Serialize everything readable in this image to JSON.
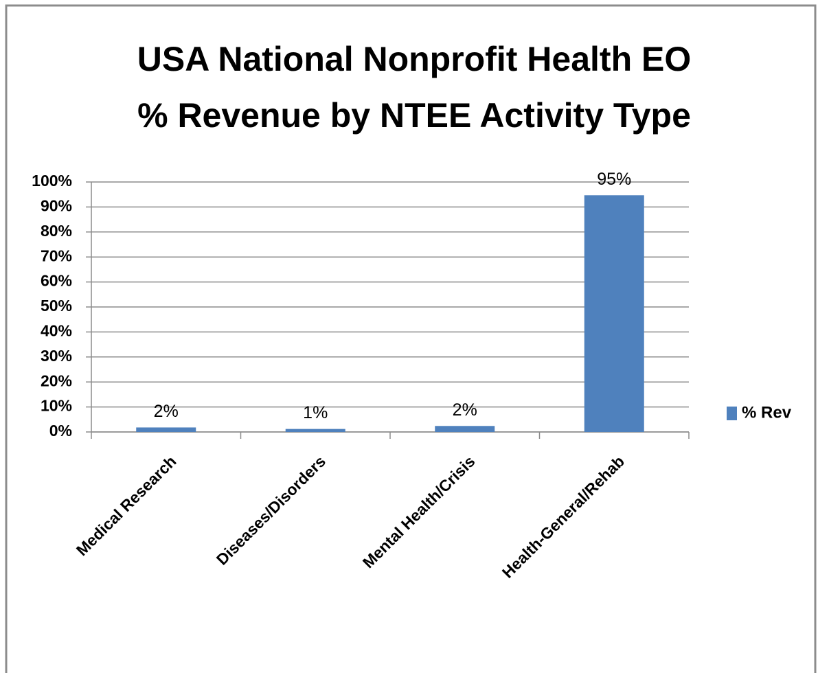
{
  "chart_data": {
    "type": "bar",
    "title": [
      "USA National Nonprofit Health EO",
      "% Revenue by NTEE Activity Type"
    ],
    "categories": [
      "Medical Research",
      "Diseases/Disorders",
      "Mental Health/Crisis",
      "Health-General/Rehab"
    ],
    "series": [
      {
        "name": "% Rev",
        "color": "#4f81bd",
        "values": [
          1.8,
          1.2,
          2.4,
          94.7
        ],
        "value_labels": [
          "2%",
          "1%",
          "2%",
          "95%"
        ]
      }
    ],
    "ylim": [
      0,
      100
    ],
    "yticks": [
      {
        "value": 0,
        "label": "0%"
      },
      {
        "value": 10,
        "label": "10%"
      },
      {
        "value": 20,
        "label": "20%"
      },
      {
        "value": 30,
        "label": "30%"
      },
      {
        "value": 40,
        "label": "40%"
      },
      {
        "value": 50,
        "label": "50%"
      },
      {
        "value": 60,
        "label": "60%"
      },
      {
        "value": 70,
        "label": "70%"
      },
      {
        "value": 80,
        "label": "80%"
      },
      {
        "value": 90,
        "label": "90%"
      },
      {
        "value": 100,
        "label": "100%"
      }
    ],
    "grid": true,
    "legend": "right"
  }
}
